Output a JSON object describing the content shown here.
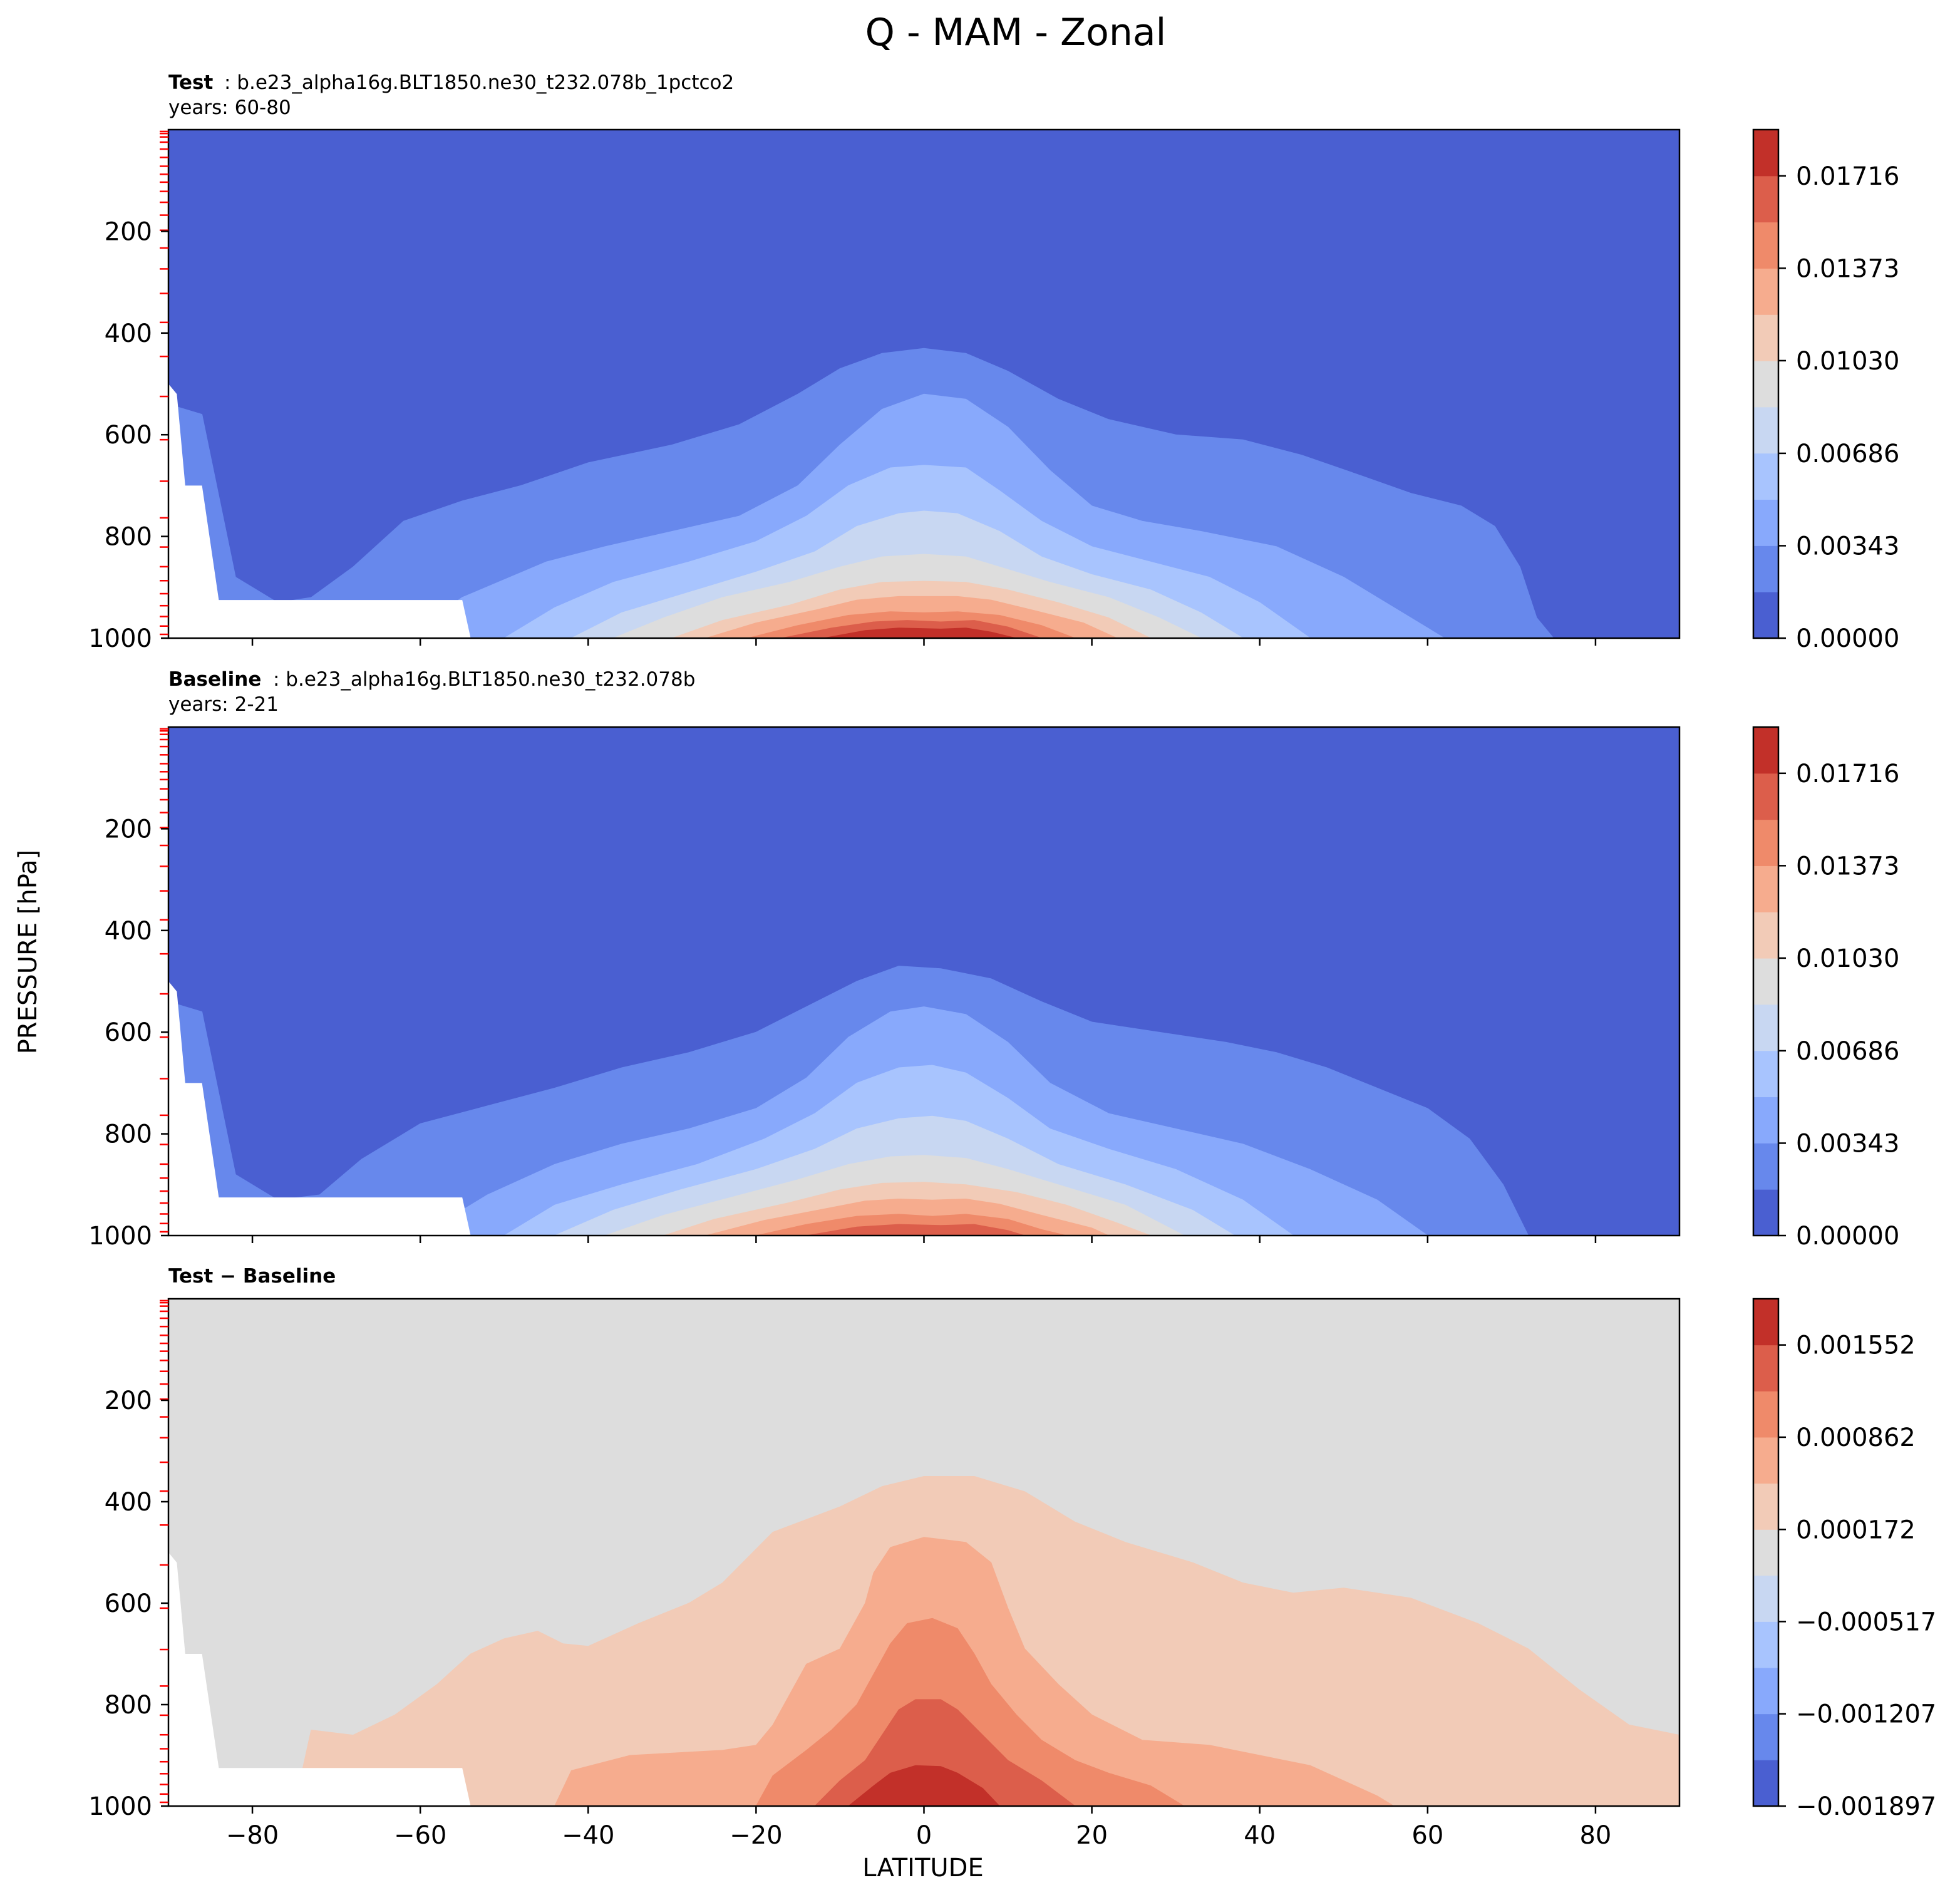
{
  "figure": {
    "title": "Q - MAM - Zonal",
    "xlabel": "LATITUDE",
    "ylabel": "PRESSURE [hPa]"
  },
  "colors": {
    "cmap": [
      "#4a5fd1",
      "#6788ec",
      "#88a9fc",
      "#a8c4fe",
      "#c8d7f2",
      "#dddddd",
      "#f2cbb7",
      "#f6ac8e",
      "#ef8a6a",
      "#dc5e4b",
      "#c23029"
    ],
    "missing": "#ffffff",
    "p_level_marker": "#ff0000"
  },
  "chart_data": [
    {
      "type": "contourf",
      "panel": "test",
      "title_bold": "Test",
      "title_text": ": b.e23_alpha16g.BLT1850.ne30_t232.078b_1pctco2",
      "years": "years: 60-80",
      "xlim": [
        -90,
        90
      ],
      "ylim": [
        1000,
        0
      ],
      "xticks": [
        -80,
        -60,
        -40,
        -20,
        0,
        20,
        40,
        60,
        80
      ],
      "yticks": [
        200,
        400,
        600,
        800,
        1000
      ],
      "colorbar": {
        "levels": [
          0.0,
          0.001716,
          0.003432,
          0.005148,
          0.006864,
          0.00858,
          0.010296,
          0.012012,
          0.013728,
          0.015444,
          0.01716,
          0.018876
        ],
        "tick_labels": [
          "0.00000",
          "0.00343",
          "0.00686",
          "0.01030",
          "0.01373",
          "0.01716"
        ],
        "tick_values": [
          0.0,
          0.00343,
          0.00686,
          0.0103,
          0.01373,
          0.01716
        ]
      },
      "contour_pressures": [
        [
          430,
          510,
          595,
          680,
          755,
          795,
          855,
          885,
          915,
          945
        ],
        [
          430,
          510,
          595,
          680,
          755,
          795,
          855,
          885,
          915,
          945
        ],
        [
          435,
          515,
          600,
          685,
          760,
          800,
          860,
          890,
          920,
          950
        ]
      ],
      "contour_lats_west": [
        -55,
        -48,
        -37,
        -31,
        -26,
        -21,
        -16,
        -12,
        -8,
        -5
      ],
      "contour_lats_east": [
        75,
        64,
        52,
        43,
        36,
        30,
        24,
        18,
        12,
        7
      ]
    },
    {
      "type": "contourf",
      "panel": "baseline",
      "title_bold": "Baseline",
      "title_text": ": b.e23_alpha16g.BLT1850.ne30_t232.078b",
      "years": "years: 2-21",
      "xlim": [
        -90,
        90
      ],
      "ylim": [
        1000,
        0
      ],
      "xticks": [
        -80,
        -60,
        -40,
        -20,
        0,
        20,
        40,
        60,
        80
      ],
      "yticks": [
        200,
        400,
        600,
        800,
        1000
      ],
      "colorbar": {
        "levels": [
          0.0,
          0.001716,
          0.003432,
          0.005148,
          0.006864,
          0.00858,
          0.010296,
          0.012012,
          0.013728,
          0.015444,
          0.01716,
          0.018876
        ],
        "tick_labels": [
          "0.00000",
          "0.00343",
          "0.00686",
          "0.01030",
          "0.01373",
          "0.01716"
        ],
        "tick_values": [
          0.0,
          0.00343,
          0.00686,
          0.0103,
          0.01373,
          0.01716
        ]
      },
      "contour_lats_west": [
        -56,
        -48,
        -40,
        -35,
        -30,
        -25,
        -20,
        -16,
        -12
      ],
      "contour_lats_east": [
        73,
        62,
        50,
        40,
        33,
        28,
        22,
        17,
        10
      ]
    },
    {
      "type": "contourf",
      "panel": "difference",
      "title_bold": "Test − Baseline",
      "xlim": [
        -90,
        90
      ],
      "ylim": [
        1000,
        0
      ],
      "xticks": [
        -80,
        -60,
        -40,
        -20,
        0,
        20,
        40,
        60,
        80
      ],
      "yticks": [
        200,
        400,
        600,
        800,
        1000
      ],
      "colorbar": {
        "levels": [
          -0.001897,
          -0.001552,
          -0.001207,
          -0.000862,
          -0.000517,
          -0.000172,
          0.000172,
          0.000517,
          0.000862,
          0.001207,
          0.001552,
          0.001897
        ],
        "tick_labels": [
          "−0.001897",
          "−0.001207",
          "−0.000517",
          "0.000172",
          "0.000862",
          "0.001552"
        ],
        "tick_values": [
          -0.001897,
          -0.001207,
          -0.000517,
          0.000172,
          0.000862,
          0.001552
        ]
      }
    }
  ],
  "pressure_levels_hpa": [
    3.6,
    7.6,
    14.4,
    24.6,
    38.3,
    54.6,
    72.0,
    87.8,
    103.3,
    121.5,
    142.9,
    168.2,
    197.9,
    232.8,
    273.9,
    322.2,
    379.1,
    445.99,
    524.7,
    609.8,
    691.4,
    763.4,
    820.9,
    859.5,
    887.0,
    912.6,
    936.2,
    957.5,
    976.3,
    992.6
  ]
}
